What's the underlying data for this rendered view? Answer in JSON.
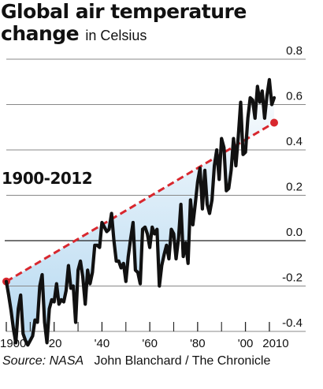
{
  "title_line1": "Global air temperature",
  "title_line2": "change",
  "title_unit": "in Celsius",
  "annotation": "1900-2012",
  "source_label": "Source: NASA",
  "credit": "John Blanchard / The Chronicle",
  "colors": {
    "line": "#111111",
    "trend": "#d8272e",
    "fill_top": "#ffffff",
    "fill_bottom": "#bcdcf2",
    "grid": "#888888"
  },
  "chart_data": {
    "type": "line",
    "title": "Global air temperature change in Celsius",
    "xlabel": "",
    "ylabel": "",
    "xlim": [
      1900,
      2012
    ],
    "ylim": [
      -0.5,
      0.8
    ],
    "y_ticks": [
      0.8,
      0.6,
      0.4,
      0.2,
      0.0,
      -0.2,
      -0.4
    ],
    "y_tick_labels": [
      "0.8",
      "0.6",
      "0.4",
      "0.2",
      "0.0",
      "-0.2",
      "-0.4"
    ],
    "x_ticks": [
      1900,
      1920,
      1940,
      1960,
      1980,
      2000,
      2010
    ],
    "x_tick_labels": [
      "1900",
      "'20",
      "'40",
      "'60",
      "'80",
      "'00",
      "2010"
    ],
    "x_minor_ticks": [
      1910,
      1930,
      1950,
      1970,
      1990
    ],
    "grid": true,
    "trend": {
      "label": "1900-2012",
      "start": [
        1900,
        -0.18
      ],
      "end": [
        2012,
        0.52
      ]
    },
    "series": [
      {
        "x": [
          1900,
          1901,
          1902,
          1903,
          1904,
          1905,
          1906,
          1907,
          1908,
          1909,
          1910,
          1911,
          1912,
          1913,
          1914,
          1915,
          1916,
          1917,
          1918,
          1919,
          1920,
          1921,
          1922,
          1923,
          1924,
          1925,
          1926,
          1927,
          1928,
          1929,
          1930,
          1931,
          1932,
          1933,
          1934,
          1935,
          1936,
          1937,
          1938,
          1939,
          1940,
          1941,
          1942,
          1943,
          1944,
          1945,
          1946,
          1947,
          1948,
          1949,
          1950,
          1951,
          1952,
          1953,
          1954,
          1955,
          1956,
          1957,
          1958,
          1959,
          1960,
          1961,
          1962,
          1963,
          1964,
          1965,
          1966,
          1967,
          1968,
          1969,
          1970,
          1971,
          1972,
          1973,
          1974,
          1975,
          1976,
          1977,
          1978,
          1979,
          1980,
          1981,
          1982,
          1983,
          1984,
          1985,
          1986,
          1987,
          1988,
          1989,
          1990,
          1991,
          1992,
          1993,
          1994,
          1995,
          1996,
          1997,
          1998,
          1999,
          2000,
          2001,
          2002,
          2003,
          2004,
          2005,
          2006,
          2007,
          2008,
          2009,
          2010,
          2011,
          2012
        ],
        "values": [
          -0.18,
          -0.24,
          -0.31,
          -0.39,
          -0.45,
          -0.3,
          -0.24,
          -0.41,
          -0.44,
          -0.46,
          -0.44,
          -0.42,
          -0.35,
          -0.36,
          -0.2,
          -0.15,
          -0.36,
          -0.45,
          -0.3,
          -0.26,
          -0.27,
          -0.19,
          -0.28,
          -0.26,
          -0.27,
          -0.22,
          -0.11,
          -0.21,
          -0.2,
          -0.36,
          -0.13,
          -0.09,
          -0.16,
          -0.28,
          -0.13,
          -0.19,
          -0.14,
          -0.02,
          -0.02,
          -0.03,
          0.08,
          0.06,
          0.04,
          0.05,
          0.12,
          0.0,
          -0.09,
          -0.09,
          -0.12,
          -0.1,
          -0.18,
          -0.07,
          0.01,
          0.08,
          -0.13,
          -0.14,
          -0.19,
          0.05,
          0.06,
          0.03,
          -0.03,
          0.06,
          0.03,
          0.05,
          -0.2,
          -0.11,
          -0.06,
          -0.02,
          -0.08,
          0.05,
          0.03,
          -0.08,
          0.01,
          0.16,
          -0.07,
          -0.01,
          -0.1,
          0.18,
          0.07,
          0.16,
          0.26,
          0.32,
          0.14,
          0.31,
          0.16,
          0.12,
          0.18,
          0.33,
          0.4,
          0.27,
          0.45,
          0.41,
          0.22,
          0.23,
          0.31,
          0.45,
          0.33,
          0.46,
          0.61,
          0.38,
          0.39,
          0.54,
          0.63,
          0.62,
          0.54,
          0.68,
          0.61,
          0.66,
          0.54,
          0.64,
          0.71,
          0.6,
          0.63
        ]
      }
    ]
  }
}
